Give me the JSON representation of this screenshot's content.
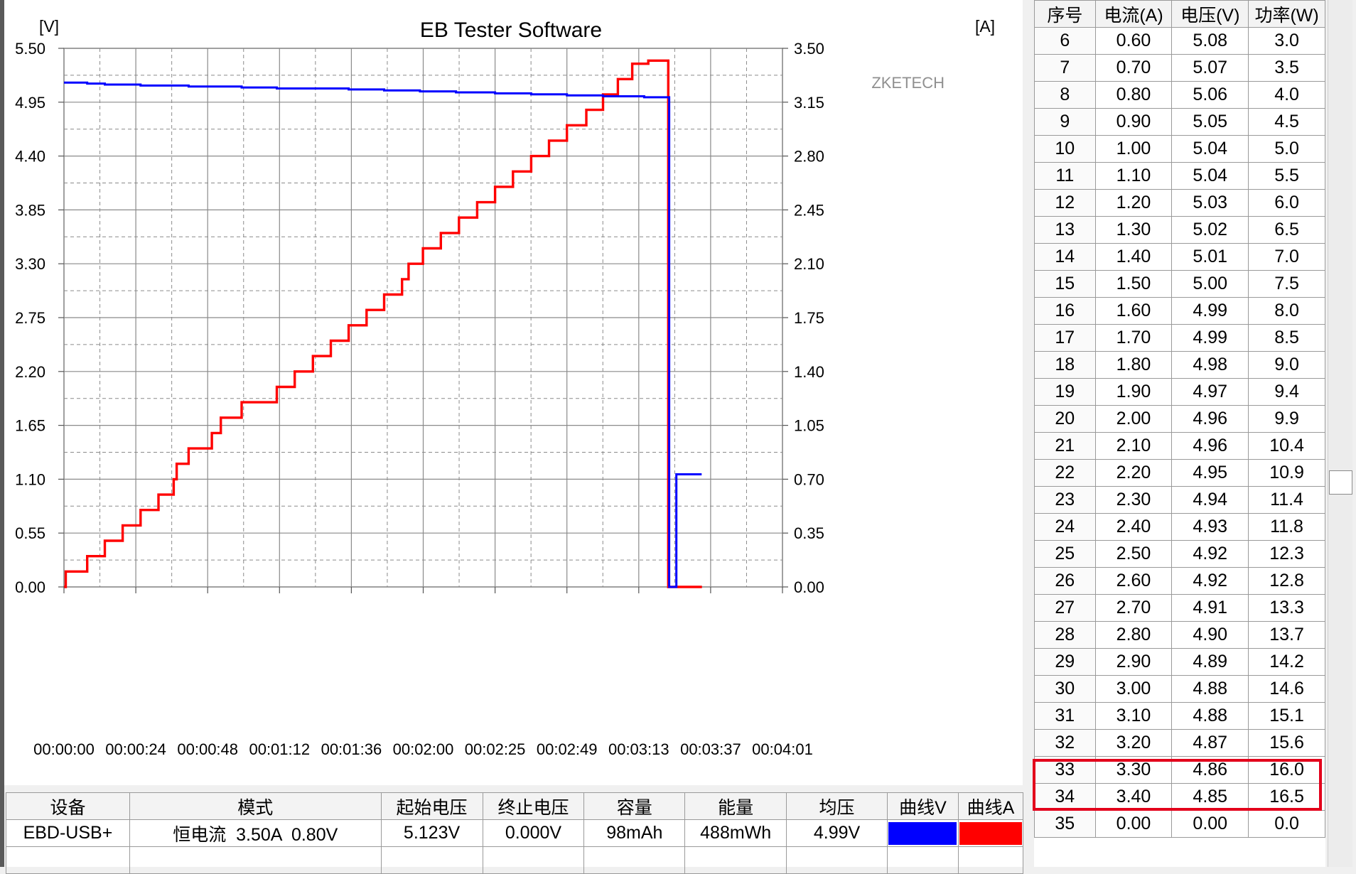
{
  "chart_data": {
    "type": "line",
    "title": "EB Tester Software",
    "watermark": "ZKETECH",
    "left_axis": {
      "unit_label": "[V]",
      "ylim": [
        0,
        5.5
      ],
      "ticks": [
        "0.00",
        "0.55",
        "1.10",
        "1.65",
        "2.20",
        "2.75",
        "3.30",
        "3.85",
        "4.40",
        "4.95",
        "5.50"
      ]
    },
    "right_axis": {
      "unit_label": "[A]",
      "ylim": [
        0,
        3.5
      ],
      "ticks": [
        "0.00",
        "0.35",
        "0.70",
        "1.05",
        "1.40",
        "1.75",
        "2.10",
        "2.45",
        "2.80",
        "3.15",
        "3.50"
      ]
    },
    "x_axis": {
      "xlim_seconds": [
        0,
        241
      ],
      "tick_labels": [
        "00:00:00",
        "00:00:24",
        "00:00:48",
        "00:01:12",
        "00:01:36",
        "00:02:00",
        "00:02:25",
        "00:02:49",
        "00:03:13",
        "00:03:37",
        "00:04:01"
      ]
    },
    "grid": true,
    "series": [
      {
        "axis": "right",
        "color": "#ff0000",
        "step": true,
        "points": [
          [
            0,
            0
          ],
          [
            0.6,
            0.1
          ],
          [
            7.8,
            0.2
          ],
          [
            13.7,
            0.3
          ],
          [
            19.7,
            0.4
          ],
          [
            25.7,
            0.5
          ],
          [
            31.7,
            0.6
          ],
          [
            36.8,
            0.7
          ],
          [
            37.8,
            0.8
          ],
          [
            40.8,
            0.8
          ],
          [
            41.8,
            0.9
          ],
          [
            49.6,
            1.0
          ],
          [
            51.2,
            1.0
          ],
          [
            52.6,
            1.1
          ],
          [
            59.6,
            1.2
          ],
          [
            71.4,
            1.3
          ],
          [
            77.4,
            1.4
          ],
          [
            83.5,
            1.5
          ],
          [
            89.5,
            1.6
          ],
          [
            95.5,
            1.7
          ],
          [
            101.5,
            1.8
          ],
          [
            107.4,
            1.9
          ],
          [
            113.4,
            2.0
          ],
          [
            114.6,
            2.0
          ],
          [
            115.6,
            2.1
          ],
          [
            119.4,
            2.1
          ],
          [
            120.4,
            2.2
          ],
          [
            125.4,
            2.2
          ],
          [
            126.4,
            2.3
          ],
          [
            131.5,
            2.3
          ],
          [
            132.5,
            2.4
          ],
          [
            138.6,
            2.5
          ],
          [
            144.6,
            2.6
          ],
          [
            150.6,
            2.7
          ],
          [
            156.7,
            2.8
          ],
          [
            162.7,
            2.9
          ],
          [
            168.7,
            3.0
          ],
          [
            174.2,
            3.0
          ],
          [
            175.2,
            3.1
          ],
          [
            176.9,
            3.1
          ],
          [
            177.9,
            3.1
          ],
          [
            180.8,
            3.2
          ],
          [
            185.8,
            3.3
          ],
          [
            187.5,
            3.3
          ],
          [
            188.6,
            3.3
          ],
          [
            190.6,
            3.4
          ],
          [
            194.6,
            3.4
          ],
          [
            196.0,
            3.42
          ],
          [
            200.5,
            3.42
          ],
          [
            202.7,
            0
          ],
          [
            214.0,
            0
          ]
        ]
      },
      {
        "axis": "left",
        "color": "#0000ff",
        "step": true,
        "points": [
          [
            0,
            5.15
          ],
          [
            7.8,
            5.14
          ],
          [
            13.7,
            5.13
          ],
          [
            25.7,
            5.12
          ],
          [
            41.8,
            5.11
          ],
          [
            59.6,
            5.1
          ],
          [
            71.4,
            5.09
          ],
          [
            95.5,
            5.08
          ],
          [
            107.4,
            5.07
          ],
          [
            119.4,
            5.06
          ],
          [
            131.5,
            5.05
          ],
          [
            144.6,
            5.04
          ],
          [
            156.7,
            5.03
          ],
          [
            168.7,
            5.02
          ],
          [
            180.8,
            5.01
          ],
          [
            194.6,
            5.0
          ],
          [
            203.0,
            5.0
          ],
          [
            203.0,
            0
          ],
          [
            205.0,
            0
          ],
          [
            205.4,
            1.15
          ],
          [
            213.9,
            1.15
          ]
        ]
      }
    ]
  },
  "table": {
    "headers": [
      "序号",
      "电流(A)",
      "电压(V)",
      "功率(W)"
    ],
    "rows": [
      [
        "6",
        "0.60",
        "5.08",
        "3.0"
      ],
      [
        "7",
        "0.70",
        "5.07",
        "3.5"
      ],
      [
        "8",
        "0.80",
        "5.06",
        "4.0"
      ],
      [
        "9",
        "0.90",
        "5.05",
        "4.5"
      ],
      [
        "10",
        "1.00",
        "5.04",
        "5.0"
      ],
      [
        "11",
        "1.10",
        "5.04",
        "5.5"
      ],
      [
        "12",
        "1.20",
        "5.03",
        "6.0"
      ],
      [
        "13",
        "1.30",
        "5.02",
        "6.5"
      ],
      [
        "14",
        "1.40",
        "5.01",
        "7.0"
      ],
      [
        "15",
        "1.50",
        "5.00",
        "7.5"
      ],
      [
        "16",
        "1.60",
        "4.99",
        "8.0"
      ],
      [
        "17",
        "1.70",
        "4.99",
        "8.5"
      ],
      [
        "18",
        "1.80",
        "4.98",
        "9.0"
      ],
      [
        "19",
        "1.90",
        "4.97",
        "9.4"
      ],
      [
        "20",
        "2.00",
        "4.96",
        "9.9"
      ],
      [
        "21",
        "2.10",
        "4.96",
        "10.4"
      ],
      [
        "22",
        "2.20",
        "4.95",
        "10.9"
      ],
      [
        "23",
        "2.30",
        "4.94",
        "11.4"
      ],
      [
        "24",
        "2.40",
        "4.93",
        "11.8"
      ],
      [
        "25",
        "2.50",
        "4.92",
        "12.3"
      ],
      [
        "26",
        "2.60",
        "4.92",
        "12.8"
      ],
      [
        "27",
        "2.70",
        "4.91",
        "13.3"
      ],
      [
        "28",
        "2.80",
        "4.90",
        "13.7"
      ],
      [
        "29",
        "2.90",
        "4.89",
        "14.2"
      ],
      [
        "30",
        "3.00",
        "4.88",
        "14.6"
      ],
      [
        "31",
        "3.10",
        "4.88",
        "15.1"
      ],
      [
        "32",
        "3.20",
        "4.87",
        "15.6"
      ],
      [
        "33",
        "3.30",
        "4.86",
        "16.0"
      ],
      [
        "34",
        "3.40",
        "4.85",
        "16.5"
      ],
      [
        "35",
        "0.00",
        "0.00",
        "0.0"
      ]
    ],
    "highlighted_rows": [
      "33",
      "34"
    ],
    "highlight_color": "#e3001b"
  },
  "summary": {
    "headers": [
      "设备",
      "模式",
      "起始电压",
      "终止电压",
      "容量",
      "能量",
      "均压",
      "曲线V",
      "曲线A"
    ],
    "row": {
      "device": "EBD-USB+",
      "mode": "恒电流  3.50A  0.80V",
      "start_voltage": "5.123V",
      "end_voltage": "0.000V",
      "capacity": "98mAh",
      "energy": "488mWh",
      "avg_voltage": "4.99V"
    },
    "curve_v_color": "#0000ff",
    "curve_a_color": "#ff0000"
  }
}
